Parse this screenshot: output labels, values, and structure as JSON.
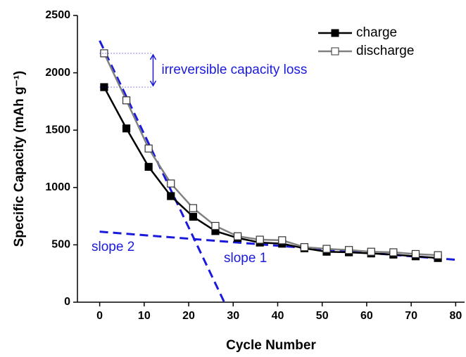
{
  "chart_data": {
    "type": "line",
    "x_label": "Cycle Number",
    "y_label": "Specific Capacity (mAh g⁻¹)",
    "xlim": [
      -5,
      82
    ],
    "xticks": [
      0,
      10,
      20,
      30,
      40,
      50,
      60,
      70,
      80
    ],
    "ylim": [
      0,
      2500
    ],
    "yticks": [
      0,
      500,
      1000,
      1500,
      2000,
      2500
    ],
    "legend": "top-right",
    "series": [
      {
        "name": "charge",
        "color": "#000000",
        "marker": "filled-square",
        "x": [
          1,
          6,
          11,
          16,
          21,
          26,
          31,
          36,
          41,
          46,
          51,
          56,
          61,
          66,
          71,
          76
        ],
        "values": [
          1875,
          1515,
          1180,
          925,
          745,
          620,
          560,
          520,
          510,
          470,
          440,
          435,
          425,
          415,
          400,
          385
        ]
      },
      {
        "name": "discharge",
        "color": "#808080",
        "marker": "open-square",
        "x": [
          1,
          6,
          11,
          16,
          21,
          26,
          31,
          36,
          41,
          46,
          51,
          56,
          61,
          66,
          71,
          76
        ],
        "values": [
          2170,
          1760,
          1340,
          1035,
          820,
          665,
          575,
          545,
          540,
          480,
          465,
          455,
          440,
          435,
          420,
          410
        ]
      }
    ],
    "annotation": "irreversible capacity loss",
    "trend_lines": [
      {
        "label": "slope 1",
        "color": "#1a1adc",
        "x": [
          0,
          28
        ],
        "y": [
          2280,
          0
        ]
      },
      {
        "label": "slope 2",
        "color": "#1a1adc",
        "x": [
          0,
          80
        ],
        "y": [
          615,
          370
        ]
      }
    ]
  }
}
